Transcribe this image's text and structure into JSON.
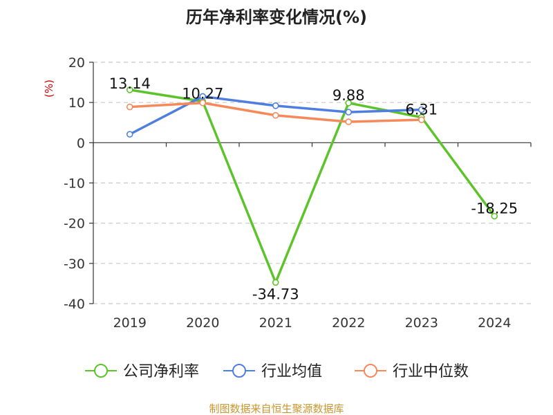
{
  "chart_data": {
    "type": "line",
    "title": "历年净利率变化情况(%)",
    "ylabel": "(%)",
    "xlabel": "",
    "categories": [
      "2019",
      "2020",
      "2021",
      "2022",
      "2023",
      "2024"
    ],
    "ylim": [
      -40,
      20
    ],
    "yticks": [
      20,
      10,
      0,
      -10,
      -20,
      -30,
      -40
    ],
    "grid": true,
    "legend_position": "bottom",
    "series": [
      {
        "name": "公司净利率",
        "color": "#5cc42a",
        "values": [
          13.14,
          10.27,
          -34.73,
          9.88,
          6.31,
          -18.25
        ],
        "labels": [
          "13.14",
          "10.27",
          "-34.73",
          "9.88",
          "6.31",
          "-18.25"
        ]
      },
      {
        "name": "行业均值",
        "color": "#4e7fe0",
        "values": [
          2.1,
          11.5,
          9.2,
          7.6,
          8.2,
          null
        ]
      },
      {
        "name": "行业中位数",
        "color": "#f5895a",
        "values": [
          8.9,
          9.9,
          6.8,
          5.2,
          5.7,
          null
        ]
      }
    ],
    "source": "制图数据来自恒生聚源数据库"
  }
}
